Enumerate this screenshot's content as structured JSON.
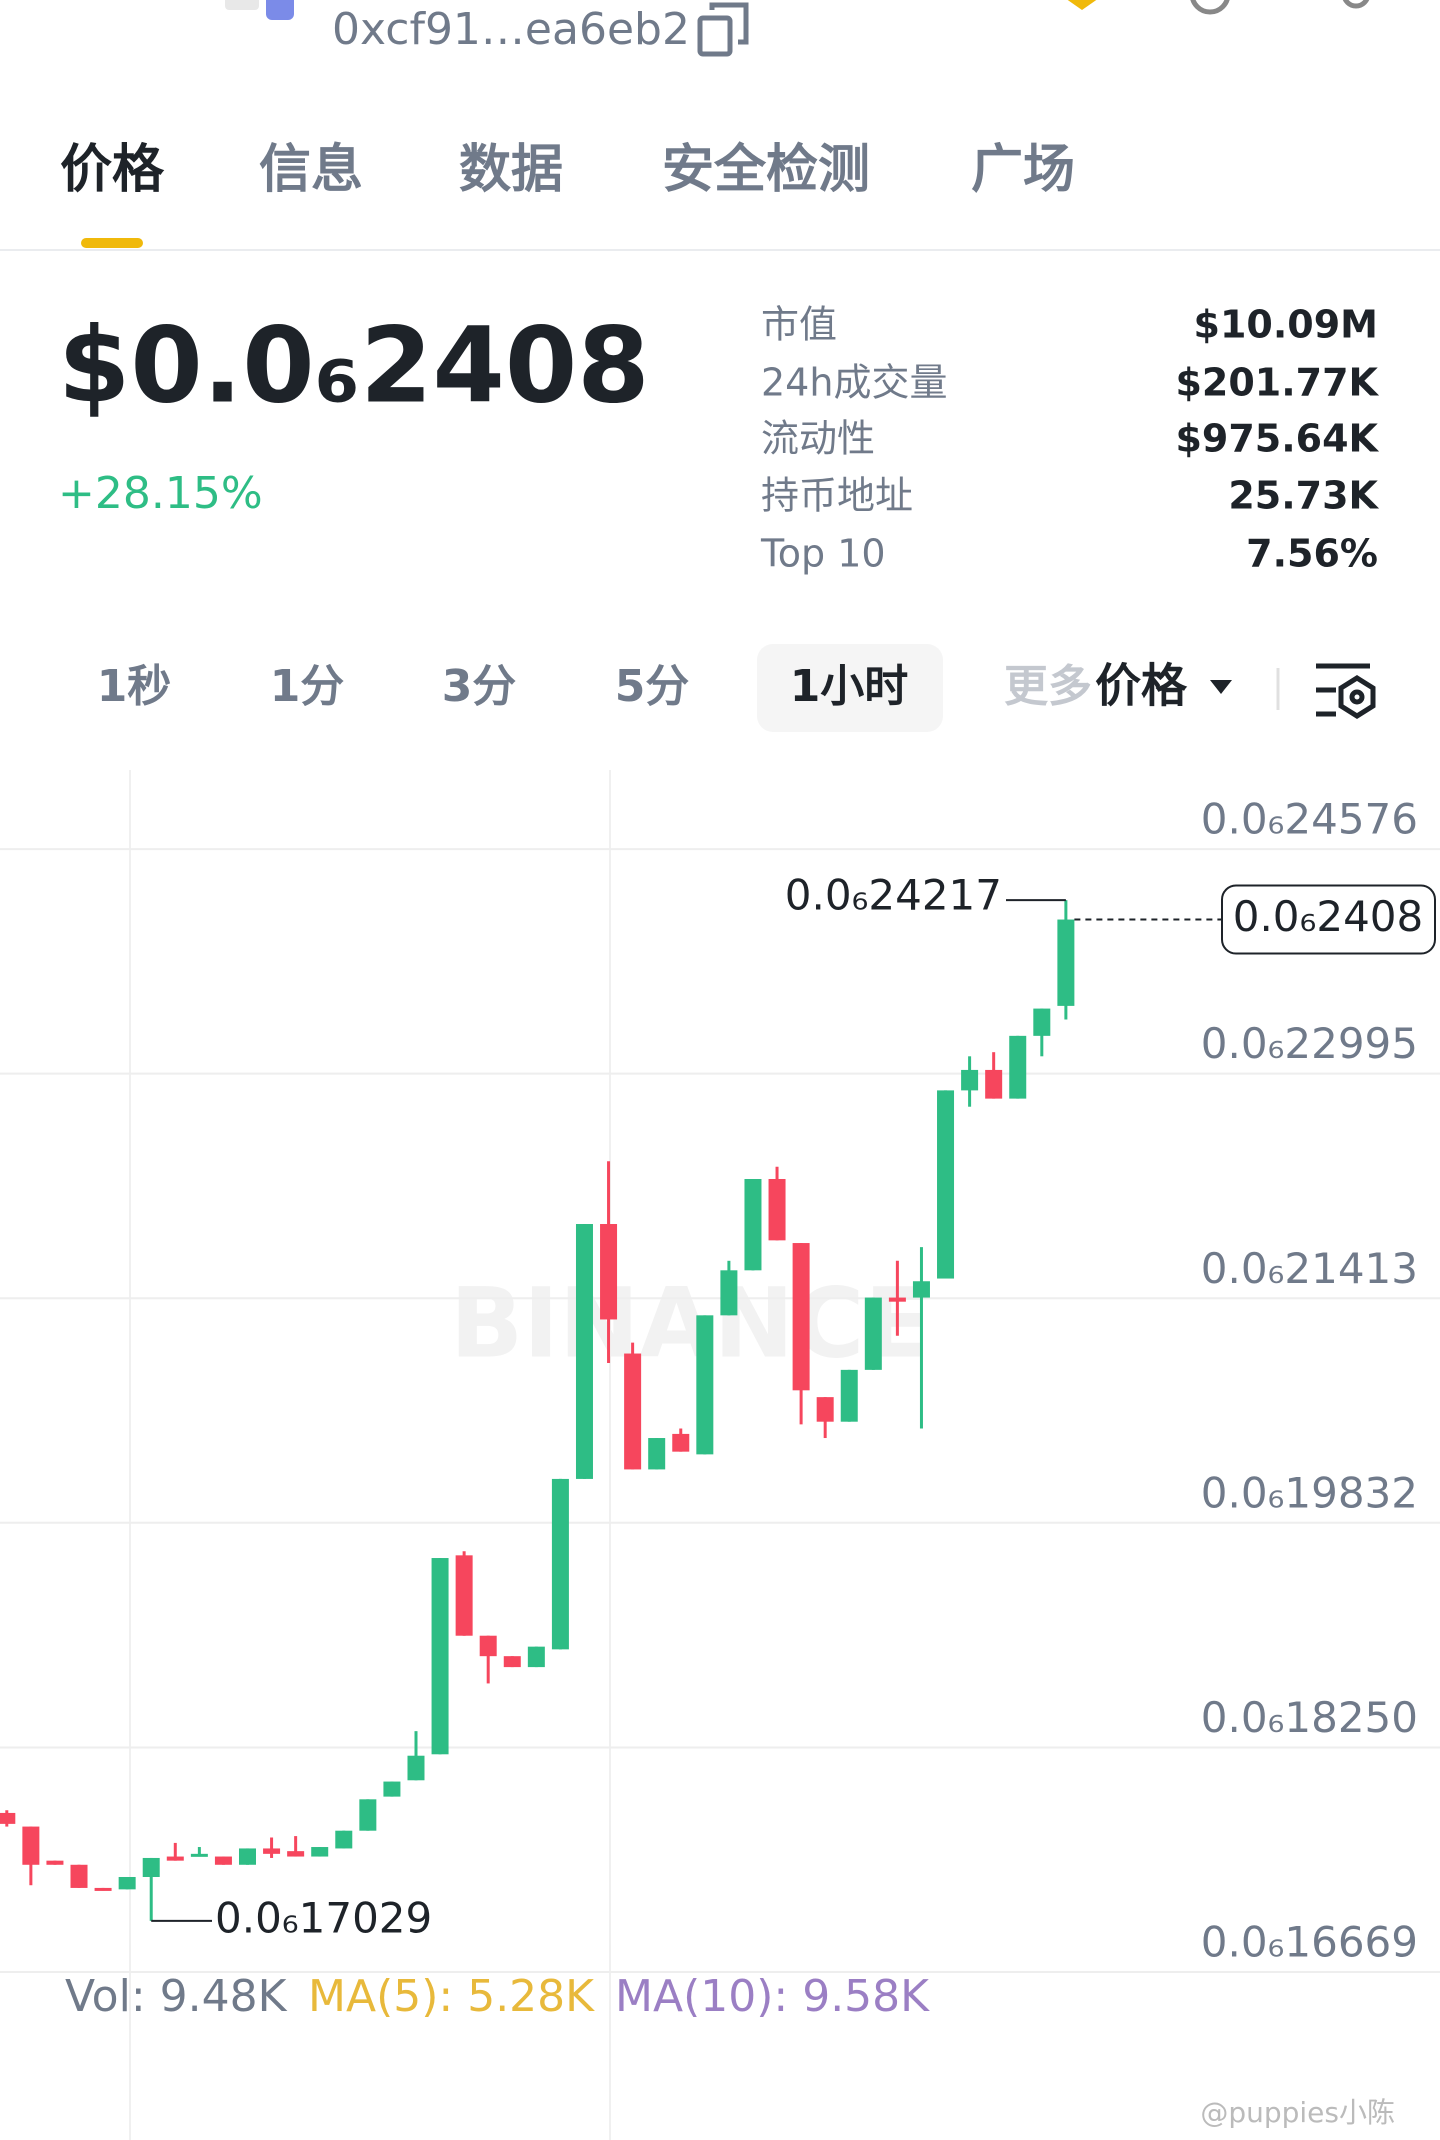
{
  "header": {
    "address": "0xcf91…ea6eb2"
  },
  "tabs": [
    "价格",
    "信息",
    "数据",
    "安全检测",
    "广场"
  ],
  "price": {
    "value": "$0.0₆2408",
    "change": "+28.15%"
  },
  "stats": [
    {
      "label": "市值",
      "value": "$10.09M"
    },
    {
      "label": "24h成交量",
      "value": "$201.77K"
    },
    {
      "label": "流动性",
      "value": "$975.64K"
    },
    {
      "label": "持币地址",
      "value": "25.73K"
    },
    {
      "label": "Top 10",
      "value": "7.56%"
    }
  ],
  "intervals": [
    "1秒",
    "1分",
    "3分",
    "5分",
    "1小时",
    "更多"
  ],
  "chart_selector": "价格",
  "chart_data": {
    "type": "candlestick",
    "up_color": "#2ebd85",
    "down_color": "#f6465d",
    "grid": true,
    "ylim": [
      1.6669e-07,
      2.5133e-07
    ],
    "yticks": [
      {
        "value": 2.4576e-07,
        "label": "0.0₆24576"
      },
      {
        "value": 2.2995e-07,
        "label": "0.0₆22995"
      },
      {
        "value": 2.1413e-07,
        "label": "0.0₆21413"
      },
      {
        "value": 1.9832e-07,
        "label": "0.0₆19832"
      },
      {
        "value": 1.825e-07,
        "label": "0.0₆18250"
      },
      {
        "value": 1.6669e-07,
        "label": "0.0₆16669"
      }
    ],
    "open": [
      1.7789e-07,
      1.7693e-07,
      1.7453e-07,
      1.7424e-07,
      1.7261e-07,
      1.7251e-07,
      1.7338e-07,
      1.7482e-07,
      1.7482e-07,
      1.7482e-07,
      1.7424e-07,
      1.7539e-07,
      1.752e-07,
      1.7482e-07,
      1.7539e-07,
      1.7664e-07,
      1.7904e-07,
      1.8019e-07,
      1.8202e-07,
      1.9603e-07,
      1.9037e-07,
      1.8893e-07,
      1.8816e-07,
      1.8941e-07,
      2.0141e-07,
      2.1936e-07,
      2.1024e-07,
      2.0208e-07,
      2.0458e-07,
      2.0314e-07,
      2.1293e-07,
      2.161e-07,
      2.2253e-07,
      2.1802e-07,
      2.0717e-07,
      2.0544e-07,
      2.0909e-07,
      2.1418e-07,
      2.1418e-07,
      2.1552e-07,
      2.2877e-07,
      2.3021e-07,
      2.2819e-07,
      2.3261e-07,
      2.3472e-07
    ],
    "high": [
      1.7808e-07,
      1.7693e-07,
      1.7453e-07,
      1.7424e-07,
      1.7261e-07,
      1.7338e-07,
      1.7472e-07,
      1.7578e-07,
      1.7549e-07,
      1.7482e-07,
      1.7539e-07,
      1.7616e-07,
      1.7626e-07,
      1.7549e-07,
      1.7664e-07,
      1.7885e-07,
      1.801e-07,
      1.8365e-07,
      1.9584e-07,
      1.9632e-07,
      1.9037e-07,
      1.8893e-07,
      1.896e-07,
      2.0141e-07,
      2.1936e-07,
      2.2378e-07,
      2.1101e-07,
      2.0429e-07,
      2.0496e-07,
      2.1293e-07,
      2.1677e-07,
      2.2253e-07,
      2.2339e-07,
      2.1802e-07,
      2.0717e-07,
      2.0909e-07,
      2.1418e-07,
      2.1677e-07,
      2.1773e-07,
      2.2877e-07,
      2.3117e-07,
      2.3146e-07,
      2.3261e-07,
      2.3453e-07,
      2.4217e-07
    ],
    "low": [
      1.7693e-07,
      1.728e-07,
      1.7424e-07,
      1.7261e-07,
      1.7242e-07,
      1.7251e-07,
      1.7029e-07,
      1.7453e-07,
      1.7482e-07,
      1.7424e-07,
      1.7424e-07,
      1.7472e-07,
      1.7482e-07,
      1.7482e-07,
      1.7539e-07,
      1.7664e-07,
      1.7904e-07,
      1.8019e-07,
      1.8202e-07,
      1.9037e-07,
      1.8701e-07,
      1.8816e-07,
      1.8816e-07,
      1.8941e-07,
      2.0141e-07,
      2.0957e-07,
      2.0208e-07,
      2.0208e-07,
      2.0333e-07,
      2.0314e-07,
      2.1293e-07,
      2.161e-07,
      2.1821e-07,
      2.0525e-07,
      2.0429e-07,
      2.0544e-07,
      2.0909e-07,
      2.1149e-07,
      2.0496e-07,
      2.1552e-07,
      2.2762e-07,
      2.2819e-07,
      2.2819e-07,
      2.3117e-07,
      2.3376e-07
    ],
    "close": [
      1.7712e-07,
      1.7424e-07,
      1.7424e-07,
      1.7261e-07,
      1.7242e-07,
      1.7338e-07,
      1.7472e-07,
      1.7453e-07,
      1.7501e-07,
      1.7424e-07,
      1.7539e-07,
      1.7501e-07,
      1.7482e-07,
      1.7549e-07,
      1.7664e-07,
      1.7885e-07,
      1.801e-07,
      1.8192e-07,
      1.9584e-07,
      1.9037e-07,
      1.8893e-07,
      1.8816e-07,
      1.896e-07,
      2.0141e-07,
      2.1936e-07,
      2.1264e-07,
      2.0208e-07,
      2.0429e-07,
      2.0333e-07,
      2.1293e-07,
      2.161e-07,
      2.2253e-07,
      2.1821e-07,
      2.0765e-07,
      2.0544e-07,
      2.0909e-07,
      2.1418e-07,
      2.1389e-07,
      2.1533e-07,
      2.2877e-07,
      2.3021e-07,
      2.2819e-07,
      2.3261e-07,
      2.3453e-07,
      2.408e-07
    ],
    "high_label": {
      "value": 2.4217e-07,
      "label": "0.0₆24217"
    },
    "low_label": {
      "value": 1.7029e-07,
      "label": "0.0₆17029"
    },
    "last_price": {
      "value": 2.408e-07,
      "label": "0.0₆2408"
    },
    "watermark": "BINANCE"
  },
  "volume": {
    "vol": "Vol: 9.48K",
    "ma5": "MA(5): 5.28K",
    "ma10": "MA(10): 9.58K"
  },
  "footer_watermark": "@puppies小陈"
}
